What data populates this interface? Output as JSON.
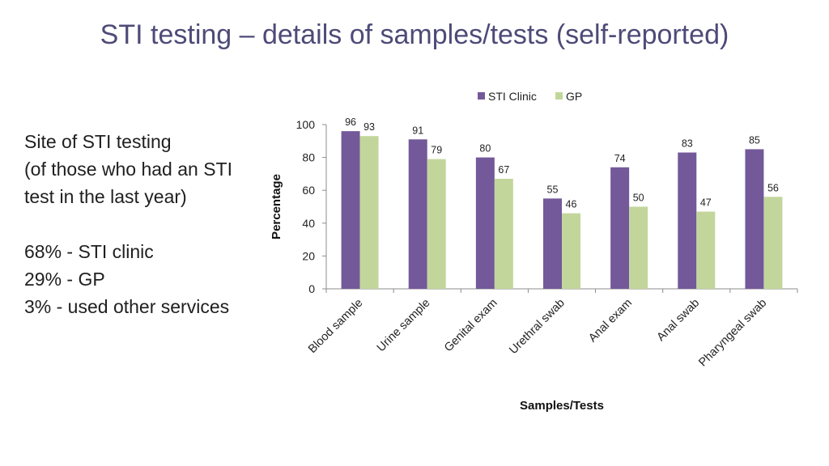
{
  "page": {
    "title": "STI testing – details of samples/tests (self-reported)"
  },
  "sidebar": {
    "heading_lines": [
      "Site of STI testing",
      "(of those who had an STI",
      "test in the last year)"
    ],
    "stats_lines": [
      "68% - STI clinic",
      "29% - GP",
      "3% - used other services"
    ]
  },
  "chart_data": {
    "type": "bar",
    "title": "",
    "xlabel": "Samples/Tests",
    "ylabel": "Percentage",
    "ylim": [
      0,
      100
    ],
    "yticks": [
      0,
      20,
      40,
      60,
      80,
      100
    ],
    "grid": false,
    "legend_position": "top",
    "categories": [
      "Blood sample",
      "Urine sample",
      "Genital exam",
      "Urethral swab",
      "Anal exam",
      "Anal swab",
      "Pharyngeal swab"
    ],
    "series": [
      {
        "name": "STI Clinic",
        "color": "#73599a",
        "values": [
          96,
          91,
          80,
          55,
          74,
          83,
          85
        ]
      },
      {
        "name": "GP",
        "color": "#c2d69b",
        "values": [
          93,
          79,
          67,
          46,
          50,
          47,
          56
        ]
      }
    ]
  }
}
